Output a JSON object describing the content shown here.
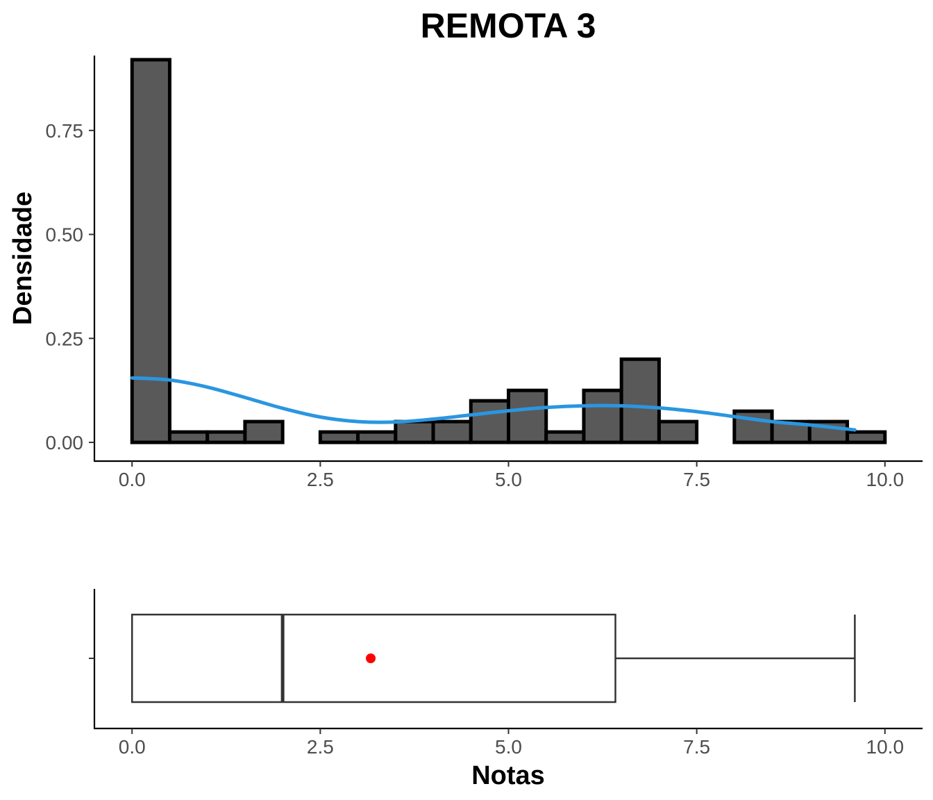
{
  "title": "REMOTA 3",
  "colors": {
    "bar_fill": "#595959",
    "bar_outline": "#000000",
    "density_line": "#2a96e0",
    "mean_point": "#ff0000",
    "box_outline": "#333333"
  },
  "chart_data": [
    {
      "type": "histogram",
      "subtype": "histogram-with-density",
      "xlabel": "",
      "ylabel": "Densidade",
      "xlim": [
        -0.5,
        10.5
      ],
      "ylim": [
        -0.045,
        0.93
      ],
      "xticks": [
        0.0,
        2.5,
        5.0,
        7.5,
        10.0
      ],
      "xtick_labels": [
        "0.0",
        "2.5",
        "5.0",
        "7.5",
        "10.0"
      ],
      "yticks": [
        0.0,
        0.25,
        0.5,
        0.75
      ],
      "ytick_labels": [
        "0.00",
        "0.25",
        "0.50",
        "0.75"
      ],
      "grid": false,
      "bins": [
        {
          "start": 0.0,
          "end": 0.5,
          "density": 0.92
        },
        {
          "start": 0.5,
          "end": 1.0,
          "density": 0.025
        },
        {
          "start": 1.0,
          "end": 1.5,
          "density": 0.025
        },
        {
          "start": 1.5,
          "end": 2.0,
          "density": 0.05
        },
        {
          "start": 2.0,
          "end": 2.5,
          "density": 0.0
        },
        {
          "start": 2.5,
          "end": 3.0,
          "density": 0.025
        },
        {
          "start": 3.0,
          "end": 3.5,
          "density": 0.025
        },
        {
          "start": 3.5,
          "end": 4.0,
          "density": 0.05
        },
        {
          "start": 4.0,
          "end": 4.5,
          "density": 0.05
        },
        {
          "start": 4.5,
          "end": 5.0,
          "density": 0.1
        },
        {
          "start": 5.0,
          "end": 5.5,
          "density": 0.125
        },
        {
          "start": 5.5,
          "end": 6.0,
          "density": 0.025
        },
        {
          "start": 6.0,
          "end": 6.5,
          "density": 0.125
        },
        {
          "start": 6.5,
          "end": 7.0,
          "density": 0.2
        },
        {
          "start": 7.0,
          "end": 7.5,
          "density": 0.05
        },
        {
          "start": 7.5,
          "end": 8.0,
          "density": 0.0
        },
        {
          "start": 8.0,
          "end": 8.5,
          "density": 0.075
        },
        {
          "start": 8.5,
          "end": 9.0,
          "density": 0.05
        },
        {
          "start": 9.0,
          "end": 9.5,
          "density": 0.05
        },
        {
          "start": 9.5,
          "end": 10.0,
          "density": 0.025
        }
      ],
      "density_curve": {
        "x": [
          0.0,
          0.5,
          1.0,
          1.5,
          2.0,
          2.5,
          3.0,
          3.5,
          4.0,
          4.5,
          5.0,
          5.5,
          6.0,
          6.5,
          7.0,
          7.5,
          8.0,
          8.5,
          9.0,
          9.6
        ],
        "y": [
          0.155,
          0.15,
          0.133,
          0.108,
          0.082,
          0.061,
          0.05,
          0.049,
          0.056,
          0.066,
          0.076,
          0.084,
          0.088,
          0.088,
          0.083,
          0.074,
          0.062,
          0.05,
          0.042,
          0.03
        ]
      }
    },
    {
      "type": "boxplot",
      "xlabel": "Notas",
      "xlim": [
        -0.5,
        10.5
      ],
      "xticks": [
        0.0,
        2.5,
        5.0,
        7.5,
        10.0
      ],
      "xtick_labels": [
        "0.0",
        "2.5",
        "5.0",
        "7.5",
        "10.0"
      ],
      "min": 0.0,
      "q1": 0.0,
      "median": 2.0,
      "q3": 6.42,
      "max": 9.6,
      "mean": 3.17,
      "grid": false
    }
  ]
}
